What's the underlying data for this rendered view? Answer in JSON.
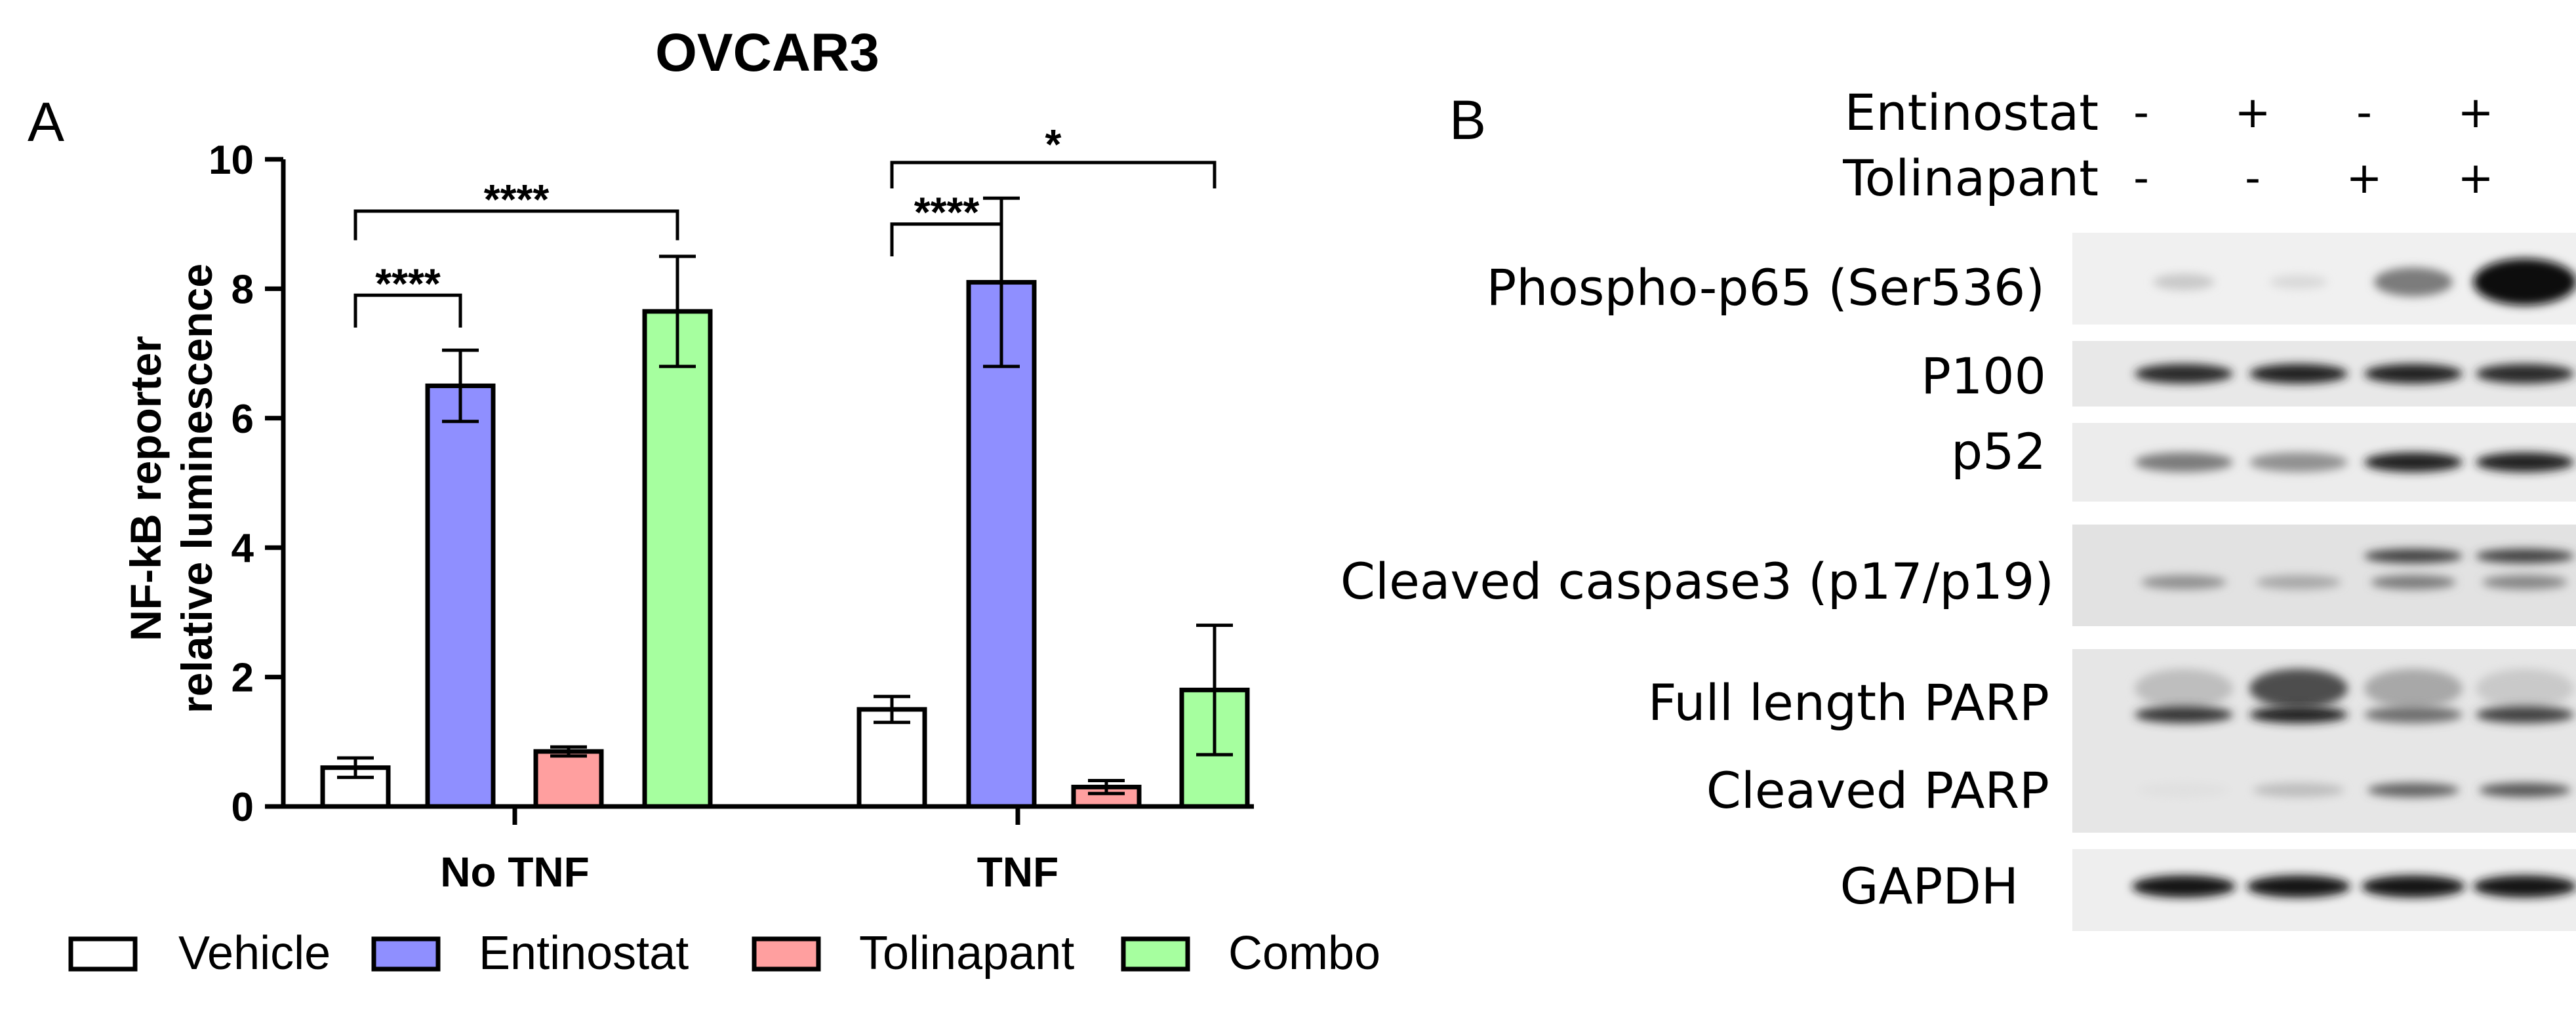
{
  "panel_a": {
    "letter": "A",
    "title": "OVCAR3",
    "ylabel_line1": "NF-kB reporter",
    "ylabel_line2": "relative luminescence",
    "significance": [
      "****",
      "****",
      "****",
      "*"
    ]
  },
  "chart_data": {
    "type": "bar",
    "title": "OVCAR3",
    "ylabel": "NF-kB reporter relative luminescence",
    "xlabel": "",
    "ylim": [
      0,
      10
    ],
    "yticks": [
      "0",
      "2",
      "4",
      "6",
      "8",
      "10"
    ],
    "categories": [
      "No TNF",
      "TNF"
    ],
    "series": [
      {
        "name": "Vehicle",
        "color": "#ffffff",
        "values": [
          0.6,
          1.5
        ],
        "errors": [
          0.15,
          0.2
        ]
      },
      {
        "name": "Entinostat",
        "color": "#8f8fff",
        "values": [
          6.5,
          8.1
        ],
        "errors": [
          0.55,
          1.3
        ]
      },
      {
        "name": "Tolinapant",
        "color": "#ff9f9f",
        "values": [
          0.85,
          0.3
        ],
        "errors": [
          0.07,
          0.1
        ]
      },
      {
        "name": "Combo",
        "color": "#a6ff9f",
        "values": [
          7.65,
          1.8
        ],
        "errors": [
          0.85,
          1.0
        ]
      }
    ],
    "legend": "bottom",
    "grid": false,
    "significance_brackets": [
      {
        "group": "No TNF",
        "from": "Vehicle",
        "to": "Entinostat",
        "label": "****"
      },
      {
        "group": "No TNF",
        "from": "Vehicle",
        "to": "Combo",
        "label": "****"
      },
      {
        "group": "TNF",
        "from": "Vehicle",
        "to": "Entinostat",
        "label": "****"
      },
      {
        "group": "TNF",
        "from": "Vehicle",
        "to": "Combo",
        "label": "*"
      }
    ]
  },
  "panel_b": {
    "letter": "B",
    "treatments": [
      {
        "name": "Entinostat",
        "signs": [
          "-",
          "+",
          "-",
          "+"
        ]
      },
      {
        "name": "Tolinapant",
        "signs": [
          "-",
          "-",
          "+",
          "+"
        ]
      }
    ],
    "blot_labels": {
      "phospho_p65": "Phospho-p65 (Ser536)",
      "p100": "P100",
      "p52": "p52",
      "cleaved_caspase3": "Cleaved caspase3 (p17/p19)",
      "full_parp": "Full length PARP",
      "cleaved_parp": "Cleaved PARP",
      "gapdh": "GAPDH"
    },
    "band_intensity": {
      "phospho_p65": [
        0.15,
        0.08,
        0.5,
        1.0
      ],
      "p100": [
        0.85,
        0.9,
        0.9,
        0.85
      ],
      "p52": [
        0.5,
        0.4,
        0.9,
        0.9
      ],
      "caspase3_upper": [
        0.0,
        0.0,
        0.75,
        0.75
      ],
      "caspase3_lower": [
        0.4,
        0.3,
        0.5,
        0.45
      ],
      "full_parp_upper": [
        0.2,
        0.7,
        0.3,
        0.15
      ],
      "full_parp_lower": [
        0.8,
        0.9,
        0.55,
        0.75
      ],
      "cleaved_parp": [
        0.05,
        0.2,
        0.6,
        0.65
      ],
      "gapdh": [
        0.95,
        0.95,
        0.95,
        0.95
      ]
    }
  }
}
